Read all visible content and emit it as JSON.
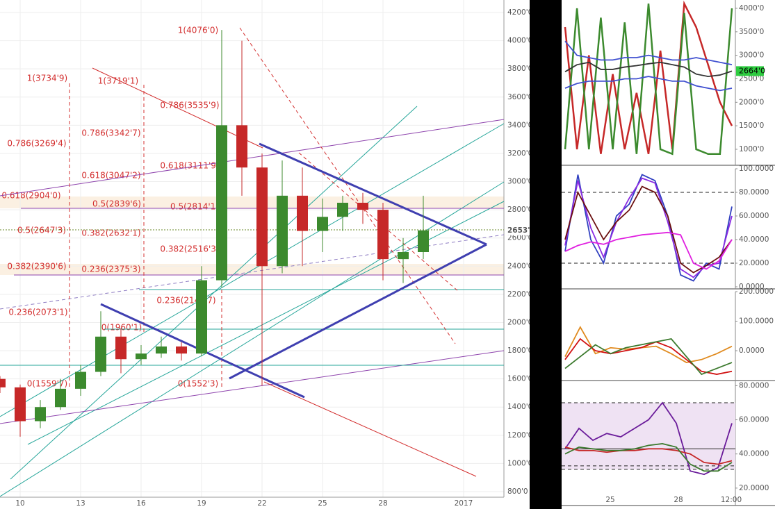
{
  "main": {
    "type": "candlestick",
    "x": [
      9,
      10,
      11,
      12,
      13,
      14,
      15,
      16,
      17,
      18,
      19,
      20,
      21,
      22,
      23,
      24,
      25,
      26,
      27,
      28,
      29,
      30
    ],
    "open": [
      1600,
      1540,
      1300,
      1400,
      1530,
      1650,
      1900,
      1740,
      1780,
      1830,
      1780,
      2300,
      3400,
      3100,
      2400,
      2900,
      2650,
      2750,
      2850,
      2800,
      2450,
      2500
    ],
    "high": [
      1620,
      1560,
      1450,
      1600,
      1700,
      2080,
      1960,
      1840,
      1900,
      1860,
      2400,
      4076,
      4000,
      3200,
      3150,
      3100,
      2880,
      2900,
      2920,
      2850,
      2600,
      2900
    ],
    "low": [
      1500,
      1190,
      1250,
      1380,
      1480,
      1620,
      1640,
      1700,
      1750,
      1730,
      1760,
      2250,
      2900,
      1552,
      2350,
      2400,
      2500,
      2650,
      2700,
      2300,
      2280,
      2450
    ],
    "close": [
      1540,
      1300,
      1400,
      1530,
      1650,
      1900,
      1740,
      1780,
      1830,
      1780,
      2300,
      3400,
      3100,
      2400,
      2900,
      2650,
      2750,
      2850,
      2800,
      2450,
      2500,
      2654
    ],
    "up_color": "#3c8a2e",
    "down_color": "#c62828",
    "xlim": [
      9,
      34
    ],
    "ylim": [
      800,
      4200
    ],
    "xticks": [
      10,
      13,
      16,
      19,
      22,
      25,
      28,
      {
        "value": 32,
        "label": "2017"
      }
    ],
    "yticks": [
      {
        "value": 800,
        "label": "800'0"
      },
      {
        "value": 1000,
        "label": "1000'0"
      },
      {
        "value": 1200,
        "label": "1200'0"
      },
      {
        "value": 1400,
        "label": "1400'0"
      },
      {
        "value": 1600,
        "label": "1600'0"
      },
      {
        "value": 1800,
        "label": "1800'0"
      },
      {
        "value": 2000,
        "label": "2000'0"
      },
      {
        "value": 2200,
        "label": "2200'0"
      },
      {
        "value": 2400,
        "label": "2400'0"
      },
      {
        "value": 2600,
        "label": "2600'0"
      },
      {
        "value": 2800,
        "label": "2800'0"
      },
      {
        "value": 3000,
        "label": "3000'0"
      },
      {
        "value": 3200,
        "label": "3200'0"
      },
      {
        "value": 3400,
        "label": "3400'0"
      },
      {
        "value": 3600,
        "label": "3600'0"
      },
      {
        "value": 3800,
        "label": "3800'0"
      },
      {
        "value": 4000,
        "label": "4000'0"
      },
      {
        "value": 4200,
        "label": "4200'0"
      }
    ],
    "last_price": {
      "value": 2653.9,
      "label": "2653'9"
    },
    "fib_labels": [
      "1(4076'0)",
      "1(3734'9)",
      "1(3719'1)",
      "0.786(3535'9)",
      "0.786(3342'7)",
      "0.786(3269'4)",
      "0.618(3111'9)",
      "0.618(3047'2)",
      "0.618(2904'0)",
      "0.5(2839'6)",
      "0.5(2814'1)",
      "0.5(2647'3)",
      "0.382(2632'1)",
      "0.382(2516'3)",
      "0.382(2390'6)",
      "0.236(2375'3)",
      "0.236(2147'7)",
      "0.236(2073'1)",
      "0(1960'1)",
      "0(1559'7)",
      "0(1552'3)"
    ]
  },
  "side": {
    "xticks": [
      "25",
      "28",
      "12:00"
    ],
    "panels": [
      {
        "ylim": [
          704,
          4177
        ],
        "yticks": [
          {
            "value": 1000,
            "label": "1000'0"
          },
          {
            "value": 1500,
            "label": "1500'0"
          },
          {
            "value": 2000,
            "label": "2000'0"
          },
          {
            "value": 2500,
            "label": "2500'0"
          },
          {
            "value": 3000,
            "label": "3000'0"
          },
          {
            "value": 3500,
            "label": "3500'0"
          },
          {
            "value": 4000,
            "label": "4000'0"
          }
        ],
        "price_tag": {
          "value": 2664,
          "label": "2664'0"
        },
        "series": [
          {
            "color": "#c62828",
            "values": [
              3600,
              1000,
              3000,
              900,
              2600,
              1000,
              2200,
              900,
              3100,
              1000,
              4100,
              3600,
              2800,
              2000,
              1500
            ]
          },
          {
            "color": "#3c8a2e",
            "values": [
              1000,
              4000,
              1000,
              3800,
              1000,
              3700,
              900,
              4100,
              1000,
              900,
              3900,
              1000,
              900,
              900,
              4000
            ]
          },
          {
            "color": "#4050d0",
            "values": [
              3300,
              3000,
              2950,
              2900,
              2900,
              2950,
              2950,
              3000,
              2950,
              2900,
              2900,
              2950,
              2900,
              2850,
              2800
            ]
          },
          {
            "color": "#4050d0",
            "values": [
              2300,
              2400,
              2450,
              2450,
              2450,
              2500,
              2500,
              2550,
              2500,
              2450,
              2450,
              2350,
              2300,
              2250,
              2300
            ]
          },
          {
            "color": "#333333",
            "values": [
              2650,
              2800,
              2850,
              2700,
              2700,
              2750,
              2780,
              2820,
              2850,
              2800,
              2750,
              2600,
              2550,
              2580,
              2664
            ]
          }
        ]
      },
      {
        "ylim": [
          0,
          100
        ],
        "yticks": [
          {
            "value": 0,
            "label": "0.0000"
          },
          {
            "value": 20,
            "label": "20.0000"
          },
          {
            "value": 40,
            "label": "40.0000"
          },
          {
            "value": 60,
            "label": "60.0000"
          },
          {
            "value": 80,
            "label": "80.0000"
          },
          {
            "value": 100,
            "label": "100.0000"
          }
        ],
        "levels": [
          80,
          20
        ],
        "series": [
          {
            "color": "#3040c0",
            "values": [
              30,
              95,
              40,
              20,
              60,
              70,
              95,
              90,
              60,
              10,
              5,
              20,
              15,
              68
            ]
          },
          {
            "color": "#8a2be2",
            "values": [
              35,
              90,
              50,
              25,
              55,
              75,
              92,
              88,
              55,
              15,
              8,
              18,
              20,
              60
            ]
          },
          {
            "color": "#6b0f0f",
            "values": [
              40,
              80,
              60,
              40,
              55,
              65,
              85,
              80,
              60,
              20,
              12,
              18,
              25,
              40
            ]
          },
          {
            "color": "#e020e0",
            "values": [
              30,
              35,
              38,
              36,
              40,
              42,
              44,
              45,
              46,
              44,
              20,
              15,
              22,
              40
            ]
          }
        ]
      },
      {
        "ylim": [
          -94,
          200
        ],
        "yticks": [
          {
            "value": 0,
            "label": "0.0000"
          },
          {
            "value": 100,
            "label": "100.0000"
          },
          {
            "value": 200,
            "label": "200.0000"
          }
        ],
        "series": [
          {
            "color": "#e08a1e",
            "values": [
              -20,
              80,
              -10,
              10,
              5,
              10,
              15,
              -10,
              -40,
              -30,
              -10,
              15
            ]
          },
          {
            "color": "#d01010",
            "values": [
              -30,
              40,
              0,
              -10,
              0,
              10,
              30,
              10,
              -30,
              -70,
              -80,
              -70
            ]
          },
          {
            "color": "#3c7a2e",
            "values": [
              -60,
              -20,
              20,
              -10,
              10,
              20,
              30,
              40,
              -20,
              -80,
              -60,
              -40
            ]
          }
        ]
      },
      {
        "ylim": [
          11,
          83
        ],
        "yticks": [
          {
            "value": 20,
            "label": "20.0000"
          },
          {
            "value": 40,
            "label": "40.0000"
          },
          {
            "value": 60,
            "label": "60.0000"
          },
          {
            "value": 80,
            "label": "80.0000"
          }
        ],
        "levels": [
          70,
          43,
          33,
          31
        ],
        "series": [
          {
            "color": "#6a1b9a",
            "values": [
              43,
              55,
              48,
              52,
              50,
              55,
              60,
              70,
              58,
              30,
              28,
              32,
              58
            ]
          },
          {
            "color": "#c62828",
            "values": [
              44,
              42,
              42,
              41,
              42,
              42,
              43,
              43,
              42,
              40,
              35,
              34,
              36
            ]
          },
          {
            "color": "#3c7a2e",
            "values": [
              40,
              44,
              43,
              42,
              42,
              43,
              45,
              46,
              44,
              34,
              30,
              30,
              35
            ]
          }
        ]
      }
    ]
  }
}
